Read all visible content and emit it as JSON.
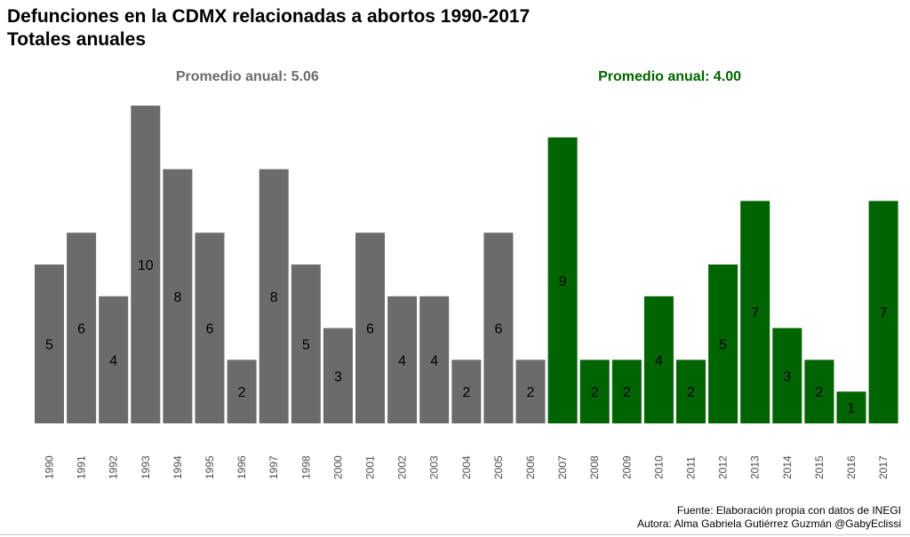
{
  "header": {
    "title": "Defunciones en la CDMX relacionadas a abortos 1990-2017",
    "subtitle": "Totales anuales"
  },
  "annotations": [
    {
      "text": "Promedio anual: 5.06",
      "group": "1990-2006",
      "color": "#6b6b6b"
    },
    {
      "text": "Promedio anual: 4.00",
      "group": "2007-2017",
      "color": "#006400"
    }
  ],
  "caption": {
    "line1": "Fuente: Elaboración propia con datos de INEGI",
    "line2": "Autora: Alma Gabriela Gutiérrez Guzmán @GabyEclissi"
  },
  "chart_data": {
    "type": "bar",
    "title": "Defunciones en la CDMX relacionadas a abortos 1990-2017",
    "subtitle": "Totales anuales",
    "xlabel": "",
    "ylabel": "",
    "ylim": [
      0,
      10
    ],
    "grid": false,
    "categories": [
      "1990",
      "1991",
      "1992",
      "1993",
      "1994",
      "1995",
      "1996",
      "1997",
      "1998",
      "2000",
      "2001",
      "2002",
      "2003",
      "2004",
      "2005",
      "2006",
      "2007",
      "2008",
      "2009",
      "2010",
      "2011",
      "2012",
      "2013",
      "2014",
      "2015",
      "2016",
      "2017"
    ],
    "values": [
      5,
      6,
      4,
      10,
      8,
      6,
      2,
      8,
      5,
      3,
      6,
      4,
      4,
      2,
      6,
      2,
      9,
      2,
      2,
      4,
      2,
      5,
      7,
      3,
      2,
      1,
      7
    ],
    "colors": {
      "before_2007": "#6b6b6b",
      "from_2007": "#006400"
    },
    "color_split_year": "2007"
  }
}
